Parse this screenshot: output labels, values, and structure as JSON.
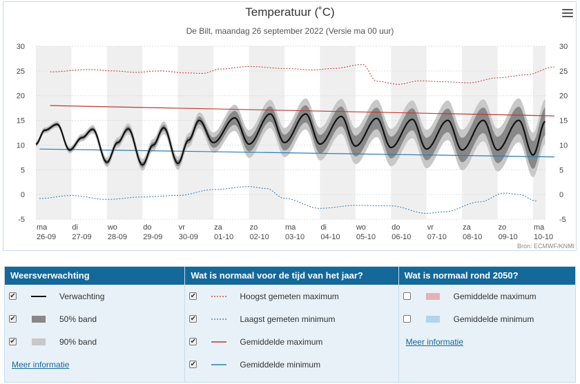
{
  "chart": {
    "title": "Temperatuur (˚C)",
    "subtitle": "De Bilt, maandag 26 september 2022 (Versie ma 00 uur)",
    "credits": "Bron: ECMWF/KNMI",
    "menu_icon": "hamburger-menu-icon"
  },
  "chart_data": {
    "type": "line",
    "title": "Temperatuur (˚C)",
    "subtitle": "De Bilt, maandag 26 september 2022 (Versie ma 00 uur)",
    "ylim": [
      -5,
      30
    ],
    "yticks": [
      -5,
      0,
      5,
      10,
      15,
      20,
      25,
      30
    ],
    "day_labels": [
      {
        "day": "ma",
        "date": "26-09"
      },
      {
        "day": "di",
        "date": "27-09"
      },
      {
        "day": "wo",
        "date": "28-09"
      },
      {
        "day": "do",
        "date": "29-09"
      },
      {
        "day": "vr",
        "date": "30-09"
      },
      {
        "day": "za",
        "date": "01-10"
      },
      {
        "day": "zo",
        "date": "02-10"
      },
      {
        "day": "ma",
        "date": "03-10"
      },
      {
        "day": "di",
        "date": "04-10"
      },
      {
        "day": "wo",
        "date": "05-10"
      },
      {
        "day": "do",
        "date": "06-10"
      },
      {
        "day": "vr",
        "date": "07-10"
      },
      {
        "day": "za",
        "date": "08-10"
      },
      {
        "day": "zo",
        "date": "09-10"
      },
      {
        "day": "ma",
        "date": "10-10"
      }
    ],
    "series": [
      {
        "name": "Verwachting",
        "color": "#111111",
        "points": [
          [
            0,
            10.2
          ],
          [
            0.25,
            13.0
          ],
          [
            0.6,
            14.2
          ],
          [
            0.95,
            9.0
          ],
          [
            1.3,
            11.5
          ],
          [
            1.6,
            13.2
          ],
          [
            2.0,
            6.5
          ],
          [
            2.3,
            10.5
          ],
          [
            2.6,
            13.3
          ],
          [
            3.0,
            6.0
          ],
          [
            3.3,
            10.0
          ],
          [
            3.6,
            13.5
          ],
          [
            4.0,
            6.3
          ],
          [
            4.3,
            11.0
          ],
          [
            4.6,
            15.0
          ],
          [
            5.0,
            10.5
          ],
          [
            5.6,
            15.5
          ],
          [
            6.0,
            10.2
          ],
          [
            6.6,
            16.3
          ],
          [
            7.0,
            10.5
          ],
          [
            7.6,
            16.3
          ],
          [
            8.0,
            10.2
          ],
          [
            8.6,
            15.8
          ],
          [
            9.0,
            9.8
          ],
          [
            9.6,
            15.4
          ],
          [
            10.0,
            9.5
          ],
          [
            10.6,
            15.2
          ],
          [
            11.0,
            9.2
          ],
          [
            11.6,
            15.0
          ],
          [
            12.0,
            9.0
          ],
          [
            12.6,
            15.0
          ],
          [
            13.0,
            9.0
          ],
          [
            13.6,
            15.0
          ],
          [
            14.0,
            8.0
          ],
          [
            14.35,
            14.8
          ]
        ]
      },
      {
        "name": "50% band",
        "color": "#888888",
        "amplitude": [
          [
            0,
            0.3
          ],
          [
            4,
            0.6
          ],
          [
            6,
            1.5
          ],
          [
            10,
            2.2
          ],
          [
            14.35,
            2.8
          ]
        ]
      },
      {
        "name": "90% band",
        "color": "#c8c8c8",
        "amplitude": [
          [
            0,
            0.6
          ],
          [
            4,
            1.3
          ],
          [
            6,
            2.8
          ],
          [
            10,
            3.8
          ],
          [
            14.35,
            4.5
          ]
        ]
      },
      {
        "name": "Hoogst gemeten maximum",
        "color": "#c0392b",
        "points": [
          [
            0.4,
            24.8
          ],
          [
            1.5,
            25.3
          ],
          [
            2.2,
            25.0
          ],
          [
            2.8,
            24.7
          ],
          [
            3.5,
            25.0
          ],
          [
            4.2,
            24.6
          ],
          [
            4.7,
            24.5
          ],
          [
            5.2,
            25.4
          ],
          [
            6.0,
            25.9
          ],
          [
            7.0,
            25.5
          ],
          [
            7.8,
            25.2
          ],
          [
            8.4,
            25.5
          ],
          [
            9.2,
            26.3
          ],
          [
            9.6,
            22.9
          ],
          [
            10.2,
            22.3
          ],
          [
            10.8,
            23.0
          ],
          [
            11.5,
            22.8
          ],
          [
            12.2,
            22.6
          ],
          [
            13.0,
            23.6
          ],
          [
            13.8,
            24.2
          ],
          [
            14.6,
            25.8
          ]
        ]
      },
      {
        "name": "Laagst gemeten minimum",
        "color": "#2b7ab5",
        "points": [
          [
            0.1,
            -0.8
          ],
          [
            1.0,
            -0.2
          ],
          [
            2.0,
            -1.0
          ],
          [
            3.0,
            -0.5
          ],
          [
            4.0,
            -0.2
          ],
          [
            5.0,
            1.0
          ],
          [
            6.0,
            1.6
          ],
          [
            6.5,
            1.2
          ],
          [
            7.0,
            -0.8
          ],
          [
            8.0,
            -2.8
          ],
          [
            9.0,
            -2.2
          ],
          [
            10.0,
            -2.3
          ],
          [
            11.0,
            -3.8
          ],
          [
            11.5,
            -3.5
          ],
          [
            12.5,
            -1.5
          ],
          [
            13.2,
            0.3
          ],
          [
            13.6,
            0.0
          ],
          [
            14.1,
            -1.3
          ]
        ]
      },
      {
        "name": "Gemiddelde maximum",
        "color": "#c0392b",
        "points": [
          [
            0.4,
            18.0
          ],
          [
            14.6,
            15.9
          ]
        ]
      },
      {
        "name": "Gemiddelde minimum",
        "color": "#2b7ab5",
        "points": [
          [
            0.1,
            9.2
          ],
          [
            14.6,
            7.6
          ]
        ]
      }
    ]
  },
  "legend": {
    "col1": {
      "header": "Weersverwachting",
      "items": [
        {
          "label": "Verwachting",
          "checked": true
        },
        {
          "label": "50% band",
          "checked": true
        },
        {
          "label": "90% band",
          "checked": true
        }
      ],
      "link": "Meer informatie"
    },
    "col2": {
      "header": "Wat is normaal voor de tijd van het jaar?",
      "items": [
        {
          "label": "Hoogst gemeten maximum",
          "checked": true
        },
        {
          "label": "Laagst gemeten minimum",
          "checked": true
        },
        {
          "label": "Gemiddelde maximum",
          "checked": true
        },
        {
          "label": "Gemiddelde minimum",
          "checked": true
        }
      ]
    },
    "col3": {
      "header": "Wat is normaal rond 2050?",
      "items": [
        {
          "label": "Gemiddelde maximum",
          "checked": false
        },
        {
          "label": "Gemiddelde minimum",
          "checked": false
        }
      ],
      "link": "Meer informatie"
    },
    "checkmark": "✔"
  }
}
